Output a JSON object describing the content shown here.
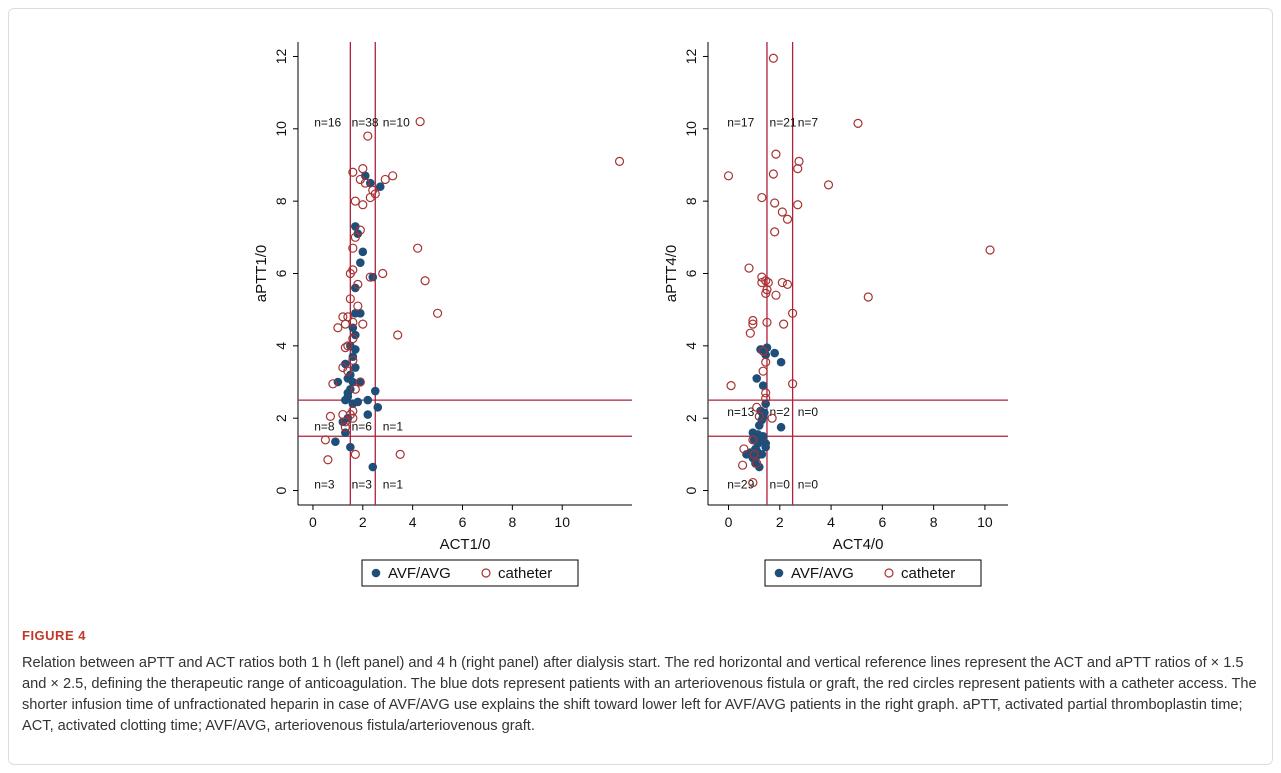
{
  "figure": {
    "label": "FIGURE 4",
    "caption": "Relation between aPTT and ACT ratios both 1 h (left panel) and 4 h (right panel) after dialysis start. The red horizontal and vertical reference lines represent the ACT and aPTT ratios of × 1.5 and × 2.5, defining the therapeutic range of anticoagulation. The blue dots represent patients with an arteriovenous fistula or graft, the red circles represent patients with a catheter access. The shorter infusion time of unfractionated heparin in case of AVF/AVG use explains the shift toward lower left for AVF/AVG patients in the right graph. aPTT, activated partial thromboplastin time; ACT, activated clotting time; AVF/AVG, arteriovenous fistula/arteriovenous graft."
  },
  "colors": {
    "avf": "#1f4e79",
    "catheter": "#a83232",
    "reference": "#b0203a",
    "axis": "#000000"
  },
  "chart_data": [
    {
      "type": "scatter",
      "xlabel": "ACT1/0",
      "ylabel": "aPTT1/0",
      "xlim": [
        -0.6,
        12.8
      ],
      "ylim": [
        -0.4,
        12.4
      ],
      "xticks": [
        0,
        2,
        4,
        6,
        8,
        10
      ],
      "yticks": [
        0,
        2,
        4,
        6,
        8,
        10,
        12
      ],
      "reference_lines": {
        "x": [
          1.5,
          2.5
        ],
        "y": [
          1.5,
          2.5
        ]
      },
      "grid": false,
      "legend": {
        "position": "bottom",
        "entries": [
          "AVF/AVG",
          "catheter"
        ]
      },
      "quadrant_counts": [
        {
          "text": "n=16",
          "x": 0.05,
          "y": 10.2
        },
        {
          "text": "n=38",
          "x": 1.55,
          "y": 10.2
        },
        {
          "text": "n=10",
          "x": 2.8,
          "y": 10.2
        },
        {
          "text": "n=8",
          "x": 0.05,
          "y": 1.8
        },
        {
          "text": "n=6",
          "x": 1.55,
          "y": 1.8
        },
        {
          "text": "n=1",
          "x": 2.8,
          "y": 1.8
        },
        {
          "text": "n=3",
          "x": 0.05,
          "y": 0.2
        },
        {
          "text": "n=3",
          "x": 1.55,
          "y": 0.2
        },
        {
          "text": "n=1",
          "x": 2.8,
          "y": 0.2
        }
      ],
      "series": [
        {
          "name": "AVF/AVG",
          "marker": "dot",
          "points": [
            [
              2.1,
              8.7
            ],
            [
              2.3,
              8.5
            ],
            [
              2.7,
              8.4
            ],
            [
              1.7,
              7.3
            ],
            [
              1.8,
              7.1
            ],
            [
              2.0,
              6.6
            ],
            [
              1.9,
              6.3
            ],
            [
              2.4,
              5.9
            ],
            [
              1.7,
              5.6
            ],
            [
              1.7,
              4.9
            ],
            [
              1.9,
              4.9
            ],
            [
              1.6,
              4.5
            ],
            [
              1.7,
              4.3
            ],
            [
              1.5,
              4.0
            ],
            [
              1.7,
              3.9
            ],
            [
              1.6,
              3.7
            ],
            [
              1.3,
              3.5
            ],
            [
              1.7,
              3.4
            ],
            [
              1.5,
              3.2
            ],
            [
              1.4,
              3.1
            ],
            [
              1.6,
              3.0
            ],
            [
              1.9,
              3.0
            ],
            [
              1.0,
              3.0
            ],
            [
              1.5,
              2.8
            ],
            [
              1.4,
              2.7
            ],
            [
              2.5,
              2.75
            ],
            [
              1.3,
              2.5
            ],
            [
              1.6,
              2.4
            ],
            [
              1.8,
              2.45
            ],
            [
              2.2,
              2.5
            ],
            [
              1.4,
              2.6
            ],
            [
              2.6,
              2.3
            ],
            [
              2.2,
              2.1
            ],
            [
              1.4,
              2.0
            ],
            [
              1.2,
              1.9
            ],
            [
              1.3,
              1.6
            ],
            [
              0.9,
              1.35
            ],
            [
              1.5,
              1.2
            ],
            [
              2.4,
              0.65
            ]
          ]
        },
        {
          "name": "catheter",
          "marker": "circle",
          "points": [
            [
              12.3,
              9.1
            ],
            [
              4.3,
              10.2
            ],
            [
              2.2,
              9.8
            ],
            [
              2.0,
              8.9
            ],
            [
              1.6,
              8.8
            ],
            [
              1.9,
              8.6
            ],
            [
              2.1,
              8.5
            ],
            [
              3.2,
              8.7
            ],
            [
              2.9,
              8.6
            ],
            [
              2.4,
              8.3
            ],
            [
              2.5,
              8.2
            ],
            [
              2.3,
              8.1
            ],
            [
              1.7,
              8.0
            ],
            [
              2.0,
              7.9
            ],
            [
              1.9,
              7.2
            ],
            [
              1.7,
              7.0
            ],
            [
              1.6,
              6.7
            ],
            [
              4.2,
              6.7
            ],
            [
              2.8,
              6.0
            ],
            [
              1.5,
              6.0
            ],
            [
              1.6,
              6.1
            ],
            [
              2.3,
              5.9
            ],
            [
              1.8,
              5.7
            ],
            [
              4.5,
              5.8
            ],
            [
              1.5,
              5.3
            ],
            [
              1.8,
              5.1
            ],
            [
              5.0,
              4.9
            ],
            [
              1.4,
              4.8
            ],
            [
              1.2,
              4.8
            ],
            [
              1.6,
              4.65
            ],
            [
              1.3,
              4.6
            ],
            [
              2.0,
              4.6
            ],
            [
              1.0,
              4.5
            ],
            [
              3.4,
              4.3
            ],
            [
              1.6,
              4.2
            ],
            [
              1.4,
              4.0
            ],
            [
              1.3,
              3.95
            ],
            [
              1.6,
              3.6
            ],
            [
              1.2,
              3.4
            ],
            [
              1.4,
              3.3
            ],
            [
              0.8,
              2.95
            ],
            [
              1.9,
              3.0
            ],
            [
              1.7,
              2.8
            ],
            [
              1.6,
              2.2
            ],
            [
              1.2,
              2.1
            ],
            [
              1.5,
              2.1
            ],
            [
              0.7,
              2.05
            ],
            [
              1.3,
              1.9
            ],
            [
              1.6,
              2.0
            ],
            [
              1.3,
              1.75
            ],
            [
              0.5,
              1.4
            ],
            [
              1.7,
              1.0
            ],
            [
              3.5,
              1.0
            ],
            [
              0.6,
              0.85
            ]
          ]
        }
      ]
    },
    {
      "type": "scatter",
      "xlabel": "ACT4/0",
      "ylabel": "aPTT4/0",
      "xlim": [
        -0.8,
        10.9
      ],
      "ylim": [
        -0.4,
        12.4
      ],
      "xticks": [
        0,
        2,
        4,
        6,
        8,
        10
      ],
      "yticks": [
        0,
        2,
        4,
        6,
        8,
        10,
        12
      ],
      "reference_lines": {
        "x": [
          1.5,
          2.5
        ],
        "y": [
          1.5,
          2.5
        ]
      },
      "grid": false,
      "legend": {
        "position": "bottom",
        "entries": [
          "AVF/AVG",
          "catheter"
        ]
      },
      "quadrant_counts": [
        {
          "text": "n=17",
          "x": -0.05,
          "y": 10.2
        },
        {
          "text": "n=21",
          "x": 1.6,
          "y": 10.2
        },
        {
          "text": "n=7",
          "x": 2.7,
          "y": 10.2
        },
        {
          "text": "n=13",
          "x": -0.05,
          "y": 2.2
        },
        {
          "text": "n=2",
          "x": 1.6,
          "y": 2.2
        },
        {
          "text": "n=0",
          "x": 2.7,
          "y": 2.2
        },
        {
          "text": "n=29",
          "x": -0.05,
          "y": 0.2
        },
        {
          "text": "n=0",
          "x": 1.6,
          "y": 0.2
        },
        {
          "text": "n=0",
          "x": 2.7,
          "y": 0.2
        }
      ],
      "series": [
        {
          "name": "AVF/AVG",
          "marker": "dot",
          "points": [
            [
              1.5,
              3.95
            ],
            [
              1.25,
              3.9
            ],
            [
              1.8,
              3.8
            ],
            [
              1.45,
              3.75
            ],
            [
              2.05,
              3.55
            ],
            [
              1.1,
              3.1
            ],
            [
              1.35,
              2.9
            ],
            [
              1.45,
              2.4
            ],
            [
              1.25,
              2.2
            ],
            [
              1.4,
              2.15
            ],
            [
              1.35,
              2.05
            ],
            [
              1.3,
              1.95
            ],
            [
              1.2,
              1.8
            ],
            [
              2.05,
              1.75
            ],
            [
              0.95,
              1.6
            ],
            [
              1.15,
              1.55
            ],
            [
              1.35,
              1.5
            ],
            [
              1.0,
              1.4
            ],
            [
              1.3,
              1.4
            ],
            [
              1.45,
              1.3
            ],
            [
              1.15,
              1.3
            ],
            [
              1.45,
              1.2
            ],
            [
              1.05,
              1.15
            ],
            [
              0.85,
              1.05
            ],
            [
              1.0,
              1.0
            ],
            [
              1.2,
              1.0
            ],
            [
              0.7,
              1.0
            ],
            [
              1.3,
              1.0
            ],
            [
              1.1,
              0.95
            ],
            [
              0.95,
              0.9
            ],
            [
              1.05,
              0.75
            ],
            [
              1.2,
              0.65
            ],
            [
              1.1,
              1.1
            ]
          ]
        },
        {
          "name": "catheter",
          "marker": "circle",
          "points": [
            [
              1.75,
              11.95
            ],
            [
              5.05,
              10.15
            ],
            [
              0.0,
              8.7
            ],
            [
              1.85,
              9.3
            ],
            [
              2.75,
              9.1
            ],
            [
              2.7,
              8.9
            ],
            [
              1.75,
              8.75
            ],
            [
              3.9,
              8.45
            ],
            [
              1.3,
              8.1
            ],
            [
              1.8,
              7.95
            ],
            [
              2.7,
              7.9
            ],
            [
              2.1,
              7.7
            ],
            [
              2.3,
              7.5
            ],
            [
              1.8,
              7.15
            ],
            [
              10.2,
              6.65
            ],
            [
              0.8,
              6.15
            ],
            [
              1.3,
              5.9
            ],
            [
              1.45,
              5.8
            ],
            [
              1.3,
              5.75
            ],
            [
              1.55,
              5.75
            ],
            [
              2.1,
              5.75
            ],
            [
              2.3,
              5.7
            ],
            [
              1.5,
              5.55
            ],
            [
              1.45,
              5.45
            ],
            [
              1.85,
              5.4
            ],
            [
              5.45,
              5.35
            ],
            [
              2.5,
              4.9
            ],
            [
              0.95,
              4.7
            ],
            [
              0.95,
              4.6
            ],
            [
              1.5,
              4.65
            ],
            [
              2.15,
              4.6
            ],
            [
              0.85,
              4.35
            ],
            [
              1.35,
              3.85
            ],
            [
              1.45,
              3.55
            ],
            [
              1.35,
              3.3
            ],
            [
              0.1,
              2.9
            ],
            [
              2.5,
              2.95
            ],
            [
              1.45,
              2.7
            ],
            [
              1.45,
              2.55
            ],
            [
              1.1,
              2.3
            ],
            [
              1.2,
              2.05
            ],
            [
              1.7,
              2.0
            ],
            [
              0.6,
              1.15
            ],
            [
              0.95,
              1.4
            ],
            [
              1.0,
              1.0
            ],
            [
              0.55,
              0.7
            ],
            [
              1.1,
              0.75
            ],
            [
              0.95,
              0.22
            ]
          ]
        }
      ]
    }
  ]
}
